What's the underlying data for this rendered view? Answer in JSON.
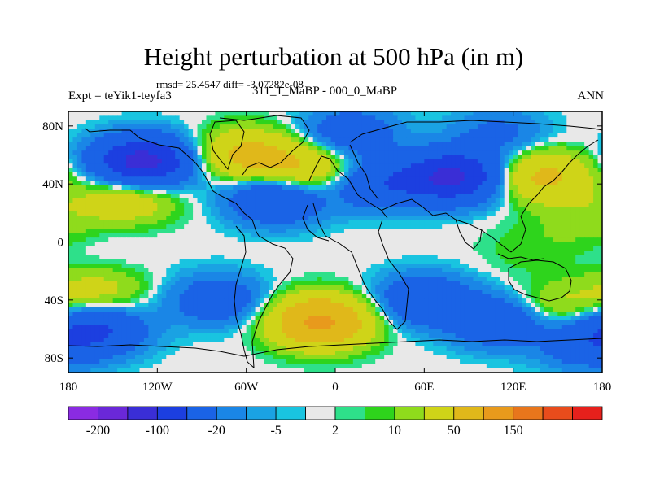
{
  "chart_data": {
    "type": "heatmap",
    "title": "Height perturbation at 500 hPa (in m)",
    "stats_text": "rmsd= 25.4547 diff= -3.07282e-08",
    "left_label": "Expt = teYik1-teyfa3",
    "center_label": "311_1_MaBP - 000_0_MaBP",
    "right_label": "ANN",
    "xlim": [
      -180,
      180
    ],
    "ylim": [
      -90,
      90
    ],
    "x_ticks": [
      {
        "value": -180,
        "label": "180"
      },
      {
        "value": -120,
        "label": "120W"
      },
      {
        "value": -60,
        "label": "60W"
      },
      {
        "value": 0,
        "label": "0"
      },
      {
        "value": 60,
        "label": "60E"
      },
      {
        "value": 120,
        "label": "120E"
      },
      {
        "value": 180,
        "label": "180"
      }
    ],
    "y_ticks": [
      {
        "value": 80,
        "label": "80N"
      },
      {
        "value": 40,
        "label": "40N"
      },
      {
        "value": 0,
        "label": "0"
      },
      {
        "value": -40,
        "label": "40S"
      },
      {
        "value": -80,
        "label": "80S"
      }
    ],
    "colorbar": {
      "colors": [
        "#8a2be2",
        "#6a28d8",
        "#3a2ed6",
        "#1c3fe0",
        "#1a63e6",
        "#1a86e6",
        "#1aa2e3",
        "#19c4e0",
        "#e8e8e8",
        "#2ee08a",
        "#2ed41c",
        "#8fdb1c",
        "#cfd418",
        "#e0b81a",
        "#e89a1c",
        "#e8761c",
        "#e84c1c",
        "#e6201c"
      ],
      "tick_labels": [
        "-200",
        "-100",
        "-20",
        "-5",
        "2",
        "10",
        "50",
        "150"
      ],
      "tick_boundaries": [
        1,
        3,
        5,
        7,
        9,
        11,
        13,
        15
      ]
    },
    "anomaly_centers_m": [
      {
        "lon": -130,
        "lat": 55,
        "value": -120
      },
      {
        "lon": -60,
        "lat": 60,
        "value": 60
      },
      {
        "lon": -20,
        "lat": 50,
        "value": 50
      },
      {
        "lon": -140,
        "lat": 30,
        "value": 40
      },
      {
        "lon": -40,
        "lat": 30,
        "value": -60
      },
      {
        "lon": 30,
        "lat": 40,
        "value": -50
      },
      {
        "lon": 80,
        "lat": 45,
        "value": -110
      },
      {
        "lon": 10,
        "lat": 75,
        "value": -40
      },
      {
        "lon": 140,
        "lat": 45,
        "value": 60
      },
      {
        "lon": 110,
        "lat": 75,
        "value": -25
      },
      {
        "lon": 170,
        "lat": 15,
        "value": 15
      },
      {
        "lon": -150,
        "lat": -5,
        "value": -3
      },
      {
        "lon": 130,
        "lat": -5,
        "value": 8
      },
      {
        "lon": 150,
        "lat": -45,
        "value": 25
      },
      {
        "lon": -160,
        "lat": -35,
        "value": 30
      },
      {
        "lon": -160,
        "lat": -60,
        "value": -60
      },
      {
        "lon": -80,
        "lat": -40,
        "value": -40
      },
      {
        "lon": -10,
        "lat": -55,
        "value": 110
      },
      {
        "lon": 60,
        "lat": -40,
        "value": -50
      },
      {
        "lon": 110,
        "lat": -55,
        "value": -50
      },
      {
        "lon": 170,
        "lat": -70,
        "value": -40
      }
    ]
  }
}
